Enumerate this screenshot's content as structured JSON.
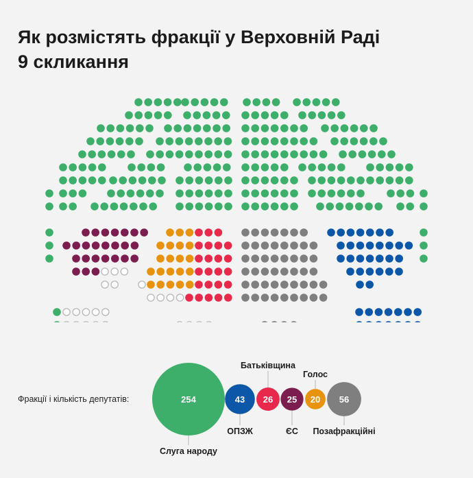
{
  "title": {
    "line1": "Як розмістять фракції у Верховній Раді",
    "line2": "9 скликання"
  },
  "legend_label": "Фракції і кількість депутатів:",
  "colors": {
    "sluha": "#3daf6b",
    "opzzh": "#0c57a7",
    "batkivshchyna": "#e8294b",
    "es": "#7b1d4e",
    "holos": "#e8930e",
    "independent": "#7f7f7f",
    "empty": "#b8b8b8",
    "background": "#f3f3f3"
  },
  "chart_data": {
    "type": "seating",
    "title": "Як розмістять фракції у Верховній Раді 9 скликання",
    "series": [
      {
        "key": "sluha",
        "name": "Слуга народу",
        "value": 254
      },
      {
        "key": "opzzh",
        "name": "ОПЗЖ",
        "value": 43
      },
      {
        "key": "batkivshchyna",
        "name": "Батьківщина",
        "value": 26
      },
      {
        "key": "es",
        "name": "ЄС",
        "value": 25
      },
      {
        "key": "holos",
        "name": "Голос",
        "value": 20
      },
      {
        "key": "independent",
        "name": "Позафракційні",
        "value": 56
      }
    ]
  }
}
